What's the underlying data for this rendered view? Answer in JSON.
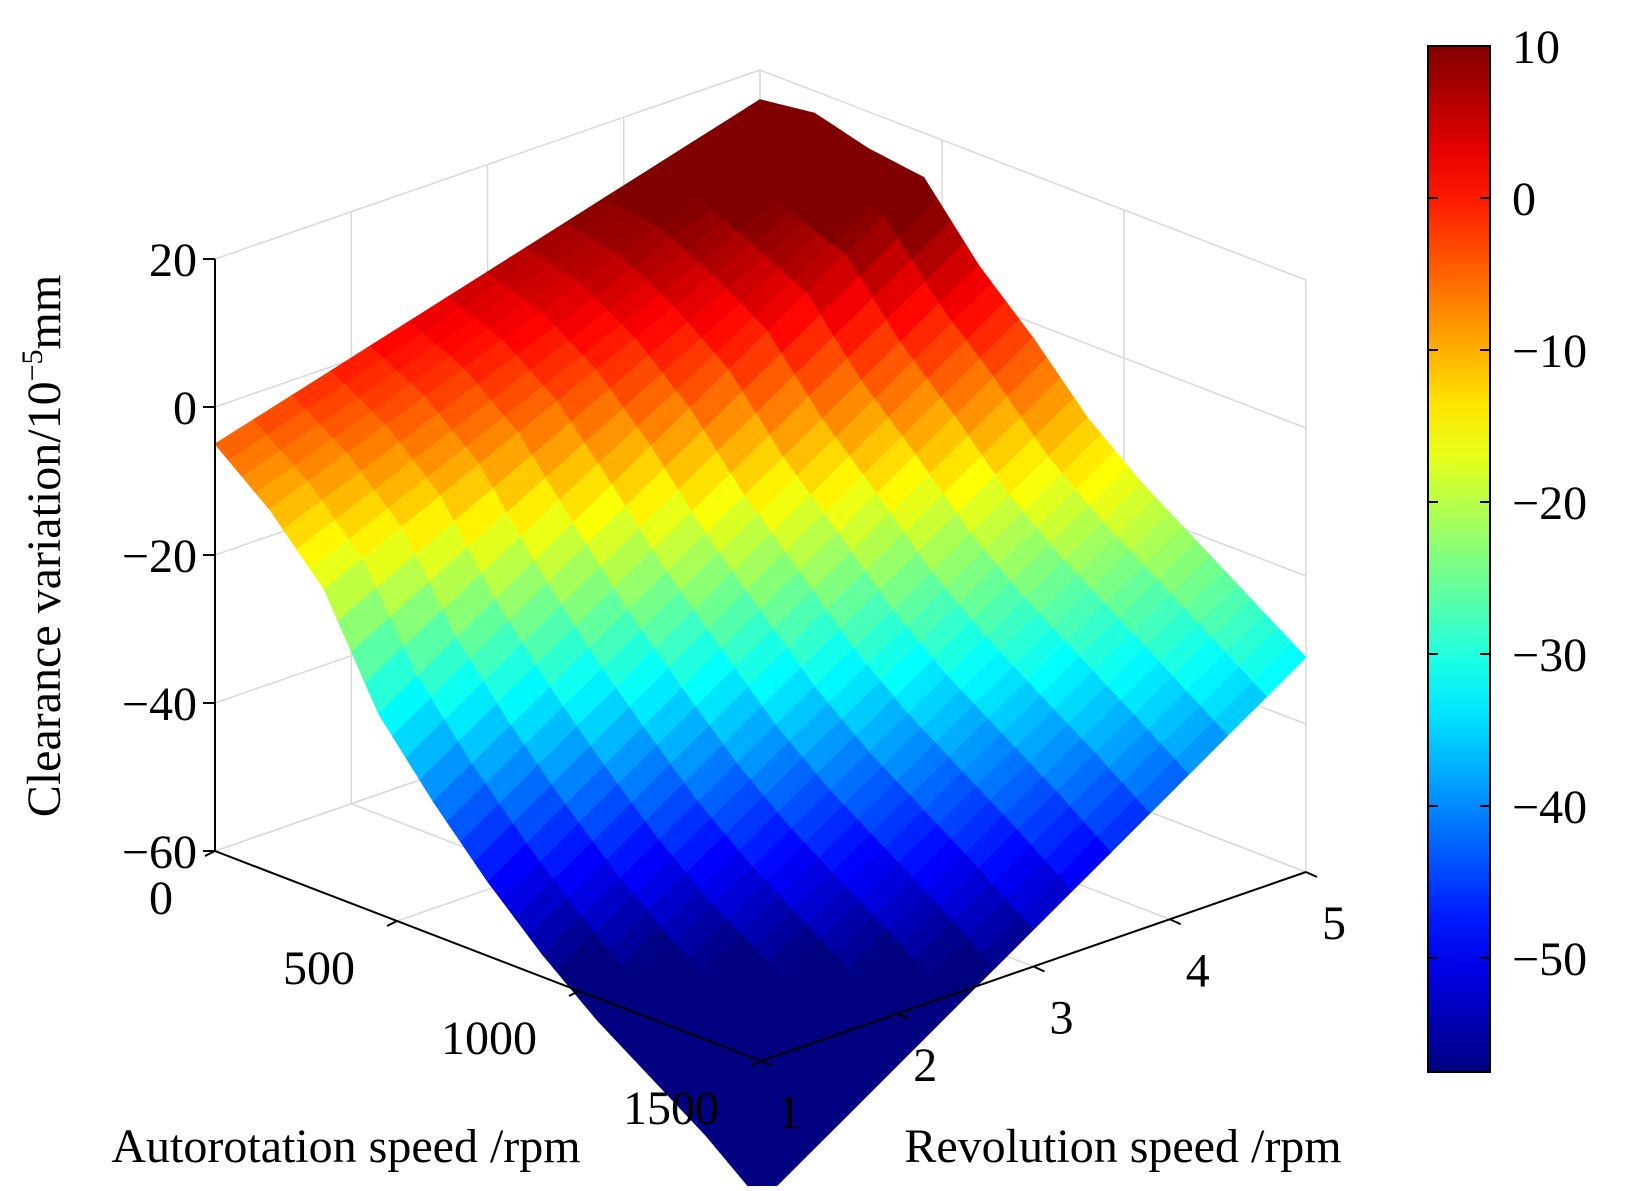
{
  "chart_data": {
    "type": "surface3d",
    "x": {
      "label": "Autorotation speed /rpm",
      "range": [
        0,
        1500
      ],
      "ticks": [
        0,
        500,
        1000,
        1500
      ],
      "tick_labels": [
        "0",
        "500",
        "1000",
        "1500"
      ]
    },
    "y": {
      "label": "Revolution speed /rpm",
      "range": [
        1,
        5
      ],
      "ticks": [
        1,
        2,
        3,
        4,
        5
      ],
      "tick_labels": [
        "1",
        "2",
        "3",
        "4",
        "5"
      ]
    },
    "z": {
      "label_main": "Clearance variation/10",
      "label_exp": "−5",
      "label_unit": "mm",
      "range": [
        -60,
        20
      ],
      "ticks": [
        -60,
        -40,
        -20,
        0,
        20
      ],
      "tick_labels": [
        "−60",
        "−40",
        "−20",
        "0",
        "20"
      ]
    },
    "surface": {
      "x_grid": [
        0,
        150,
        300,
        450,
        600,
        750,
        900,
        1050,
        1200,
        1350,
        1500
      ],
      "y_grid": [
        1,
        5
      ],
      "z_at_y1": [
        -5,
        -11,
        -19,
        -33,
        -42,
        -50,
        -57,
        -63,
        -68,
        -73,
        -79
      ],
      "z_at_y5": [
        16,
        17,
        15,
        14,
        5,
        -2,
        -10,
        -16,
        -21,
        -26,
        -31
      ]
    },
    "colorbar": {
      "range": [
        -57.5,
        10
      ],
      "ticks": [
        10,
        0,
        -10,
        -20,
        -30,
        -40,
        -50
      ],
      "tick_labels": [
        "10",
        "0",
        "−10",
        "−20",
        "−30",
        "−40",
        "−50"
      ],
      "colormap": "jet"
    },
    "grid": true
  }
}
